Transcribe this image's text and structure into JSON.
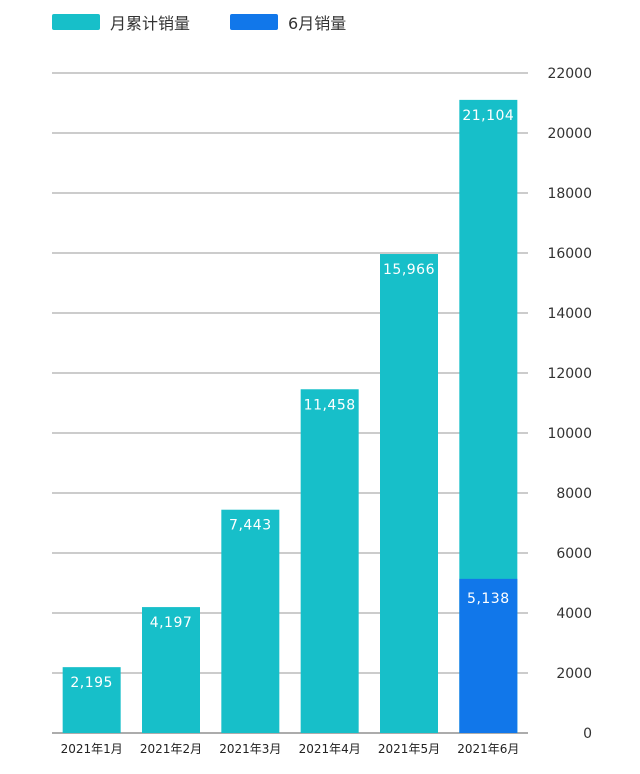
{
  "chart_data": {
    "type": "bar",
    "categories": [
      "2021年1月",
      "2021年2月",
      "2021年3月",
      "2021年4月",
      "2021年5月",
      "2021年6月"
    ],
    "series": [
      {
        "name": "月累计销量",
        "values": [
          2195,
          4197,
          7443,
          11458,
          15966,
          21104
        ],
        "labels": [
          "2,195",
          "4,197",
          "7,443",
          "11,458",
          "15,966",
          "21,104"
        ],
        "color": "#17bfc9"
      },
      {
        "name": "6月销量",
        "values": [
          null,
          null,
          null,
          null,
          null,
          5138
        ],
        "labels": [
          "",
          "",
          "",
          "",
          "",
          "5,138"
        ],
        "color": "#1177ea"
      }
    ],
    "ylim": [
      0,
      22000
    ],
    "yticks": [
      0,
      2000,
      4000,
      6000,
      8000,
      10000,
      12000,
      14000,
      16000,
      18000,
      20000,
      22000
    ],
    "y_axis_side": "right",
    "grid": true,
    "legend": "top-left",
    "title": "",
    "xlabel": "",
    "ylabel": ""
  }
}
